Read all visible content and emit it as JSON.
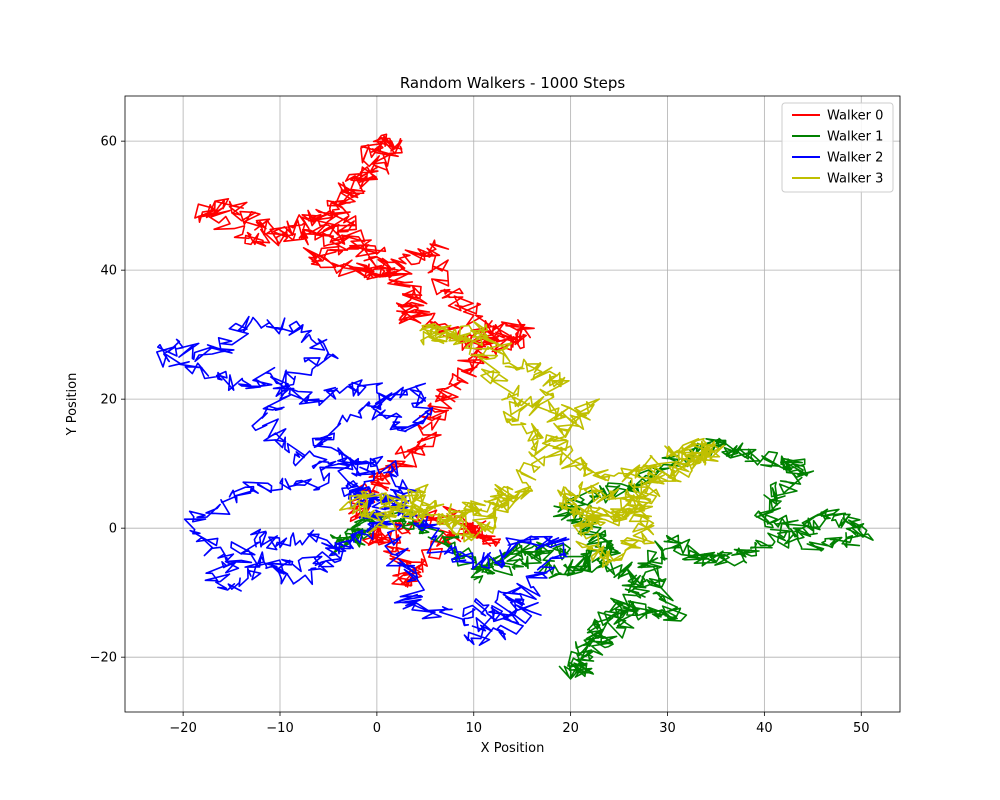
{
  "chart_data": {
    "type": "line",
    "title": "Random Walkers - 1000 Steps",
    "xlabel": "X Position",
    "ylabel": "Y Position",
    "xlim": [
      -26,
      54
    ],
    "ylim": [
      -28.5,
      67
    ],
    "xticks": [
      -20,
      -10,
      0,
      10,
      20,
      30,
      40,
      50
    ],
    "yticks": [
      -20,
      0,
      20,
      40,
      60
    ],
    "xtick_labels": [
      "−20",
      "−10",
      "0",
      "10",
      "20",
      "30",
      "40",
      "50"
    ],
    "ytick_labels": [
      "−20",
      "0",
      "20",
      "40",
      "60"
    ],
    "grid": true,
    "legend_position": "top-right",
    "steps": 1000,
    "series": [
      {
        "name": "Walker 0",
        "color": "#ff0000",
        "waypoints": [
          [
            0,
            0
          ],
          [
            2,
            -3
          ],
          [
            3,
            -9
          ],
          [
            5,
            -5
          ],
          [
            8,
            -1
          ],
          [
            10,
            0
          ],
          [
            12,
            -2
          ],
          [
            8,
            2
          ],
          [
            4,
            1
          ],
          [
            0,
            -2
          ],
          [
            -2,
            3
          ],
          [
            0,
            7
          ],
          [
            2,
            10
          ],
          [
            5,
            13
          ],
          [
            6,
            18
          ],
          [
            8,
            22
          ],
          [
            10,
            26
          ],
          [
            12,
            30
          ],
          [
            15,
            31
          ],
          [
            13,
            28
          ],
          [
            9,
            29
          ],
          [
            6,
            32
          ],
          [
            3,
            33
          ],
          [
            4,
            36
          ],
          [
            1,
            40
          ],
          [
            -1,
            43
          ],
          [
            -3,
            46
          ],
          [
            -4,
            50
          ],
          [
            -1,
            56
          ],
          [
            0,
            60
          ],
          [
            2,
            59
          ],
          [
            -1,
            55
          ],
          [
            -3,
            52
          ],
          [
            -5,
            47
          ],
          [
            -8,
            45
          ],
          [
            -12,
            47
          ],
          [
            -15,
            50
          ],
          [
            -18,
            49
          ],
          [
            -13,
            44
          ],
          [
            -9,
            46
          ],
          [
            -6,
            49
          ],
          [
            -4,
            44
          ],
          [
            -7,
            42
          ],
          [
            -2,
            40
          ],
          [
            0,
            39
          ],
          [
            3,
            41
          ],
          [
            6,
            44
          ],
          [
            7,
            37
          ],
          [
            10,
            33
          ],
          [
            13,
            29
          ]
        ],
        "sigma": 1.1,
        "seed": 101
      },
      {
        "name": "Walker 1",
        "color": "#008000",
        "waypoints": [
          [
            0,
            0
          ],
          [
            -4,
            -3
          ],
          [
            -2,
            0
          ],
          [
            0,
            2
          ],
          [
            3,
            1
          ],
          [
            7,
            -2
          ],
          [
            10,
            -6
          ],
          [
            14,
            -6
          ],
          [
            18,
            -3
          ],
          [
            22,
            -5
          ],
          [
            24,
            -3
          ],
          [
            22,
            0
          ],
          [
            19,
            3
          ],
          [
            22,
            5
          ],
          [
            26,
            6
          ],
          [
            29,
            9
          ],
          [
            33,
            12
          ],
          [
            36,
            13
          ],
          [
            38,
            11
          ],
          [
            42,
            10
          ],
          [
            44,
            9
          ],
          [
            41,
            5
          ],
          [
            40,
            1
          ],
          [
            44,
            0
          ],
          [
            46,
            2
          ],
          [
            49,
            1
          ],
          [
            50,
            -1
          ],
          [
            47,
            -3
          ],
          [
            43,
            -1
          ],
          [
            39,
            -3
          ],
          [
            36,
            -5
          ],
          [
            33,
            -4
          ],
          [
            30,
            -2
          ],
          [
            28,
            -6
          ],
          [
            29,
            -9
          ],
          [
            31,
            -14
          ],
          [
            28,
            -13
          ],
          [
            25,
            -12
          ],
          [
            23,
            -15
          ],
          [
            22,
            -18
          ],
          [
            21,
            -22
          ],
          [
            20,
            -22
          ],
          [
            23,
            -18
          ],
          [
            25,
            -15
          ],
          [
            27,
            -10
          ],
          [
            26,
            -7
          ],
          [
            22,
            -5
          ],
          [
            19,
            -7
          ],
          [
            16,
            -3
          ],
          [
            13,
            -4
          ],
          [
            10,
            -8
          ]
        ],
        "sigma": 1.05,
        "seed": 202
      },
      {
        "name": "Walker 2",
        "color": "#0000ff",
        "waypoints": [
          [
            0,
            0
          ],
          [
            0,
            2
          ],
          [
            -2,
            5
          ],
          [
            -1,
            9
          ],
          [
            -4,
            10
          ],
          [
            -6,
            6
          ],
          [
            -10,
            7
          ],
          [
            -13,
            6
          ],
          [
            -16,
            4
          ],
          [
            -19,
            1
          ],
          [
            -17,
            -3
          ],
          [
            -14,
            -5
          ],
          [
            -17,
            -7
          ],
          [
            -15,
            -9
          ],
          [
            -12,
            -7
          ],
          [
            -9,
            -5
          ],
          [
            -6,
            -6
          ],
          [
            -4,
            -3
          ],
          [
            -7,
            -1
          ],
          [
            -10,
            -3
          ],
          [
            -13,
            -1
          ],
          [
            -14,
            -4
          ],
          [
            -11,
            -6
          ],
          [
            -8,
            -8
          ],
          [
            -5,
            -5
          ],
          [
            -3,
            -2
          ],
          [
            -1,
            -1
          ],
          [
            1,
            2
          ],
          [
            2,
            -4
          ],
          [
            4,
            -8
          ],
          [
            3,
            -12
          ],
          [
            6,
            -13
          ],
          [
            9,
            -14
          ],
          [
            11,
            -12
          ],
          [
            13,
            -14
          ],
          [
            14,
            -10
          ],
          [
            16,
            -13
          ],
          [
            13,
            -16
          ],
          [
            10,
            -18
          ],
          [
            12,
            -14
          ],
          [
            15,
            -11
          ],
          [
            17,
            -7
          ],
          [
            19,
            -4
          ],
          [
            18,
            -2
          ],
          [
            15,
            -2
          ],
          [
            13,
            -5
          ],
          [
            10,
            -5
          ],
          [
            7,
            -4
          ],
          [
            5,
            0
          ],
          [
            3,
            3
          ],
          [
            1,
            5
          ],
          [
            -1,
            4
          ],
          [
            -3,
            7
          ],
          [
            -5,
            10
          ],
          [
            -8,
            11
          ],
          [
            -10,
            14
          ],
          [
            -12,
            17
          ],
          [
            -10,
            20
          ],
          [
            -8,
            24
          ],
          [
            -5,
            27
          ],
          [
            -7,
            30
          ],
          [
            -10,
            31
          ],
          [
            -13,
            32
          ],
          [
            -15,
            29
          ],
          [
            -17,
            27
          ],
          [
            -20,
            28
          ],
          [
            -22,
            27
          ],
          [
            -19,
            25
          ],
          [
            -16,
            23
          ],
          [
            -13,
            22
          ],
          [
            -11,
            24
          ],
          [
            -9,
            21
          ],
          [
            -6,
            20
          ],
          [
            -3,
            22
          ],
          [
            0,
            21
          ],
          [
            1,
            17
          ],
          [
            3,
            15
          ],
          [
            5,
            18
          ],
          [
            4,
            22
          ],
          [
            2,
            21
          ],
          [
            -1,
            19
          ],
          [
            -4,
            16
          ],
          [
            -6,
            13
          ],
          [
            -3,
            11
          ],
          [
            0,
            10
          ],
          [
            2,
            8
          ],
          [
            3,
            5
          ],
          [
            1,
            3
          ],
          [
            -1,
            5
          ],
          [
            -2,
            7
          ]
        ],
        "sigma": 1.05,
        "seed": 303
      },
      {
        "name": "Walker 3",
        "color": "#bfbf00",
        "waypoints": [
          [
            0,
            0
          ],
          [
            2,
            3
          ],
          [
            4,
            6
          ],
          [
            6,
            3
          ],
          [
            3,
            2
          ],
          [
            -1,
            2
          ],
          [
            -3,
            4
          ],
          [
            -1,
            5
          ],
          [
            2,
            4
          ],
          [
            5,
            2
          ],
          [
            8,
            1
          ],
          [
            10,
            2
          ],
          [
            12,
            4
          ],
          [
            14,
            6
          ],
          [
            12,
            3
          ],
          [
            9,
            3
          ],
          [
            7,
            1
          ],
          [
            10,
            -1
          ],
          [
            12,
            2
          ],
          [
            15,
            6
          ],
          [
            16,
            10
          ],
          [
            17,
            14
          ],
          [
            14,
            17
          ],
          [
            15,
            20
          ],
          [
            12,
            23
          ],
          [
            11,
            27
          ],
          [
            9,
            30
          ],
          [
            6,
            29
          ],
          [
            5,
            31
          ],
          [
            8,
            30
          ],
          [
            11,
            31
          ],
          [
            13,
            27
          ],
          [
            15,
            25
          ],
          [
            17,
            24
          ],
          [
            19,
            22
          ],
          [
            16,
            19
          ],
          [
            19,
            17
          ],
          [
            22,
            19
          ],
          [
            20,
            16
          ],
          [
            18,
            14
          ],
          [
            19,
            11
          ],
          [
            21,
            9
          ],
          [
            24,
            8
          ],
          [
            27,
            9
          ],
          [
            29,
            10
          ],
          [
            31,
            12
          ],
          [
            33,
            13
          ],
          [
            35,
            12
          ],
          [
            32,
            10
          ],
          [
            29,
            8
          ],
          [
            26,
            7
          ],
          [
            28,
            4
          ],
          [
            26,
            2
          ],
          [
            23,
            3
          ],
          [
            21,
            2
          ],
          [
            19,
            5
          ],
          [
            21,
            6
          ],
          [
            24,
            5
          ],
          [
            27,
            3
          ],
          [
            28,
            0
          ],
          [
            26,
            -3
          ],
          [
            24,
            -5
          ],
          [
            22,
            -3
          ],
          [
            21,
            0
          ],
          [
            23,
            1
          ],
          [
            25,
            2
          ],
          [
            27,
            5
          ],
          [
            29,
            7
          ],
          [
            31,
            9
          ],
          [
            33,
            11
          ],
          [
            35,
            13
          ]
        ],
        "sigma": 1.05,
        "seed": 404
      }
    ]
  }
}
